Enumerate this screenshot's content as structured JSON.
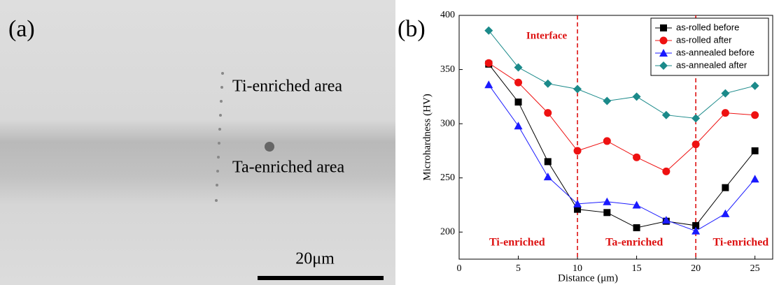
{
  "panel_a": {
    "label": "(a)",
    "annotations": [
      "Ti-enriched area",
      "Ta-enriched area"
    ],
    "scale_bar": "20μm"
  },
  "chart_data": {
    "type": "line",
    "panel_label": "(b)",
    "x_label": "Distance (μm)",
    "y_label": "Microhardness (HV)",
    "x": [
      2.5,
      5,
      7.5,
      10,
      12.5,
      15,
      17.5,
      20,
      22.5,
      25
    ],
    "series": [
      {
        "name": "as-rolled before",
        "color": "#000000",
        "marker": "square",
        "values": [
          355,
          320,
          265,
          221,
          218,
          204,
          210,
          206,
          241,
          275
        ]
      },
      {
        "name": "as-rolled after",
        "color": "#ee1111",
        "marker": "circle",
        "values": [
          356,
          338,
          310,
          275,
          284,
          269,
          256,
          281,
          310,
          308
        ]
      },
      {
        "name": "as-annealed before",
        "color": "#1a1aff",
        "marker": "triangle",
        "values": [
          336,
          298,
          251,
          226,
          228,
          225,
          211,
          201,
          217,
          249
        ]
      },
      {
        "name": "as-annealed after",
        "color": "#1b8a8a",
        "marker": "diamond",
        "values": [
          386,
          352,
          337,
          332,
          321,
          325,
          308,
          305,
          328,
          335
        ]
      }
    ],
    "xlim": [
      0,
      26.5
    ],
    "ylim": [
      175,
      400
    ],
    "xticks": [
      0,
      5,
      10,
      15,
      20,
      25
    ],
    "yticks": [
      200,
      250,
      300,
      350,
      400
    ],
    "interface_label": "Interface",
    "interface_lines": [
      10,
      20
    ],
    "interface_color": "#dd1111",
    "regions": [
      {
        "label": "Ti-enriched",
        "x": 4.9
      },
      {
        "label": "Ta-enriched",
        "x": 14.8
      },
      {
        "label": "Ti-enriched",
        "x": 23.8
      }
    ],
    "legend": "upper right"
  }
}
